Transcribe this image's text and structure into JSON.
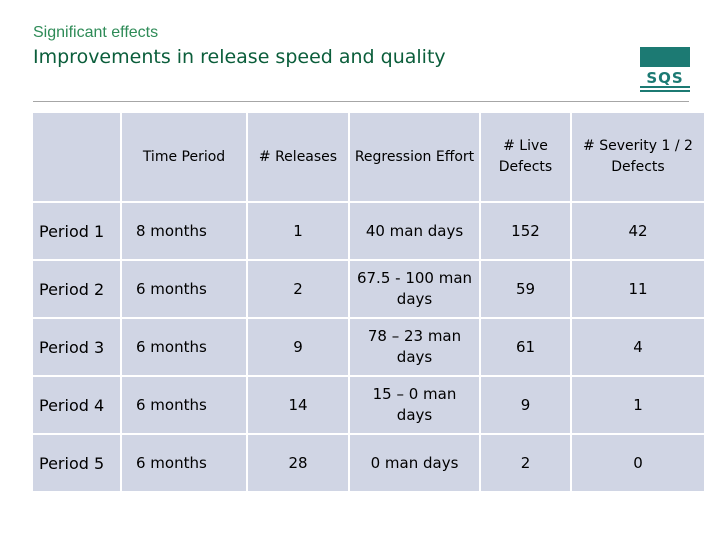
{
  "header": {
    "supertitle": "Significant effects",
    "title": "Improvements in release speed and quality",
    "logo_text": "SQS"
  },
  "colors": {
    "title_green": "#0b5e3b",
    "accent_green": "#2e8b57",
    "cell_fill": "#d0d5e4",
    "logo_teal": "#1c7a73"
  },
  "table": {
    "columns": [
      "",
      "Time Period",
      "# Releases",
      "Regression Effort",
      "# Live Defects",
      "# Severity 1 / 2 Defects"
    ],
    "rows": [
      [
        "Period 1",
        "8 months",
        "1",
        "40 man days",
        "152",
        "42"
      ],
      [
        "Period 2",
        "6 months",
        "2",
        "67.5 - 100 man days",
        "59",
        "11"
      ],
      [
        "Period 3",
        "6 months",
        "9",
        "78 – 23 man days",
        "61",
        "4"
      ],
      [
        "Period 4",
        "6 months",
        "14",
        "15 – 0 man days",
        "9",
        "1"
      ],
      [
        "Period 5",
        "6 months",
        "28",
        "0 man days",
        "2",
        "0"
      ]
    ]
  }
}
